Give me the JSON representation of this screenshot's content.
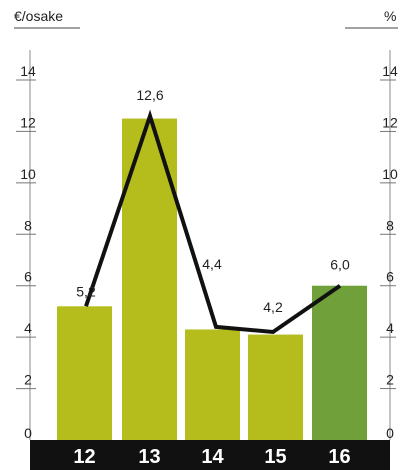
{
  "chart_data": {
    "type": "bar",
    "left_unit": "€/osake",
    "right_unit": "%",
    "categories": [
      "12",
      "13",
      "14",
      "15",
      "16"
    ],
    "bars": {
      "values": [
        5.2,
        12.5,
        4.3,
        4.1,
        6.0
      ],
      "colors": [
        "#b5bd1c",
        "#b5bd1c",
        "#b5bd1c",
        "#b5bd1c",
        "#70a03a"
      ]
    },
    "line": {
      "values": [
        5.2,
        12.6,
        4.4,
        4.2,
        6.0
      ],
      "labels": [
        "5,2",
        "12,6",
        "4,4",
        "4,2",
        "6,0"
      ],
      "color": "#111111"
    },
    "y_left": {
      "range": [
        0,
        14
      ],
      "ticks": [
        "0",
        "2",
        "4",
        "6",
        "8",
        "10",
        "12",
        "14"
      ]
    },
    "y_right": {
      "range": [
        0,
        14
      ],
      "ticks": [
        "0",
        "2",
        "4",
        "6",
        "8",
        "10",
        "12",
        "14"
      ]
    },
    "category_band_color": "#111111",
    "category_text_color": "#ffffff"
  }
}
